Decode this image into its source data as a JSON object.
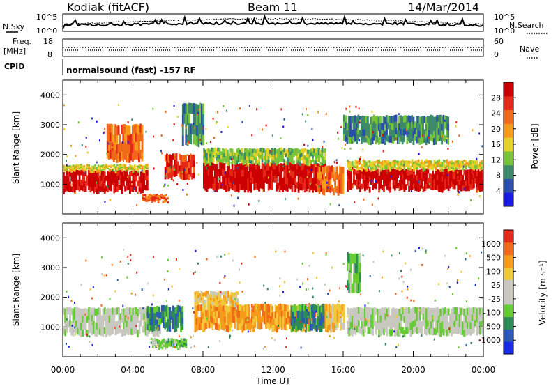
{
  "header": {
    "station": "Kodiak (fitACF)",
    "beam": "Beam 11",
    "date": "14/Mar/2014"
  },
  "top_panels": {
    "nsky_label": "N.Sky",
    "nsky_ticks": [
      "10^5",
      "10^0"
    ],
    "nsearch_label": "N.Search",
    "nsearch_ticks": [
      "10^5",
      "10^0"
    ],
    "freq_label_1": "Freq.",
    "freq_label_2": "[MHz]",
    "freq_ticks": [
      "18",
      "8"
    ],
    "nave_label": "Nave",
    "nave_ticks": [
      "60",
      "0"
    ],
    "cpid_label": "CPID",
    "cpid_text": "normalsound (fast) -157 RF"
  },
  "colors": {
    "power": [
      "#1a1ae6",
      "#2a4fb0",
      "#3d8a6a",
      "#77c43a",
      "#e6d02a",
      "#f59a1a",
      "#f06a1a",
      "#e62a1a",
      "#cc0000"
    ],
    "velocity": [
      "#1a2ae6",
      "#2a5ab5",
      "#2e8b57",
      "#66cc33",
      "#c8c8c0",
      "#c8c8c0",
      "#f0c83a",
      "#f59a1a",
      "#f06a1a",
      "#e62a1a"
    ]
  },
  "chart_data": [
    {
      "type": "heatmap",
      "name": "power",
      "xlabel": "",
      "ylabel": "Slant Range [km]",
      "xlim": [
        "00:00",
        "24:00"
      ],
      "ylim": [
        0,
        4500
      ],
      "yticks": [
        "1000",
        "2000",
        "3000",
        "4000"
      ],
      "colorbar_label": "Power [dB]",
      "colorbar_ticks": [
        "4",
        "8",
        "12",
        "16",
        "20",
        "24",
        "28"
      ],
      "colorbar_range": [
        0,
        32
      ],
      "regions": [
        {
          "t0": 0.0,
          "t1": 4.8,
          "r0": 750,
          "r1": 1450,
          "level": 8
        },
        {
          "t0": 0.0,
          "t1": 4.8,
          "r0": 1450,
          "r1": 1650,
          "level": 4
        },
        {
          "t0": 2.5,
          "t1": 4.5,
          "r0": 1800,
          "r1": 3000,
          "level": 6
        },
        {
          "t0": 4.5,
          "t1": 6.0,
          "r0": 400,
          "r1": 650,
          "level": 6
        },
        {
          "t0": 5.8,
          "t1": 7.5,
          "r0": 1200,
          "r1": 2000,
          "level": 7
        },
        {
          "t0": 6.8,
          "t1": 8.0,
          "r0": 2300,
          "r1": 3700,
          "level": 2
        },
        {
          "t0": 8.0,
          "t1": 15.0,
          "r0": 800,
          "r1": 1700,
          "level": 8
        },
        {
          "t0": 8.0,
          "t1": 15.0,
          "r0": 1700,
          "r1": 2200,
          "level": 3
        },
        {
          "t0": 14.5,
          "t1": 16.0,
          "r0": 700,
          "r1": 1600,
          "level": 6
        },
        {
          "t0": 16.2,
          "t1": 24.0,
          "r0": 800,
          "r1": 1500,
          "level": 8
        },
        {
          "t0": 16.2,
          "t1": 24.0,
          "r0": 1500,
          "r1": 1800,
          "level": 4
        },
        {
          "t0": 16.0,
          "t1": 22.0,
          "r0": 2400,
          "r1": 3300,
          "level": 2
        }
      ]
    },
    {
      "type": "heatmap",
      "name": "velocity",
      "xlabel": "Time UT",
      "ylabel": "Slant Range [km]",
      "xlim": [
        "00:00",
        "24:00"
      ],
      "ylim": [
        0,
        4500
      ],
      "yticks": [
        "1000",
        "2000",
        "3000",
        "4000"
      ],
      "xticks": [
        "00:00",
        "04:00",
        "08:00",
        "12:00",
        "16:00",
        "20:00",
        "00:00"
      ],
      "colorbar_label": "Velocity [m s⁻¹]",
      "colorbar_ticks": [
        "1000",
        "500",
        "100",
        "25",
        "-25",
        "-100",
        "-500",
        "-1000"
      ],
      "regions": [
        {
          "t0": 0.0,
          "t1": 5.5,
          "r0": 750,
          "r1": 1650,
          "level": 4
        },
        {
          "t0": 4.8,
          "t1": 6.8,
          "r0": 900,
          "r1": 1700,
          "level": 2
        },
        {
          "t0": 5.0,
          "t1": 7.0,
          "r0": 300,
          "r1": 600,
          "level": 3
        },
        {
          "t0": 7.5,
          "t1": 15.5,
          "r0": 900,
          "r1": 1750,
          "level": 7
        },
        {
          "t0": 7.5,
          "t1": 10.0,
          "r0": 1750,
          "r1": 2200,
          "level": 6
        },
        {
          "t0": 13.0,
          "t1": 14.8,
          "r0": 900,
          "r1": 1750,
          "level": 2
        },
        {
          "t0": 15.0,
          "t1": 16.0,
          "r0": 900,
          "r1": 1750,
          "level": 6
        },
        {
          "t0": 16.2,
          "t1": 24.0,
          "r0": 750,
          "r1": 1650,
          "level": 4
        },
        {
          "t0": 16.2,
          "t1": 17.0,
          "r0": 2200,
          "r1": 3500,
          "level": 3
        }
      ]
    }
  ]
}
